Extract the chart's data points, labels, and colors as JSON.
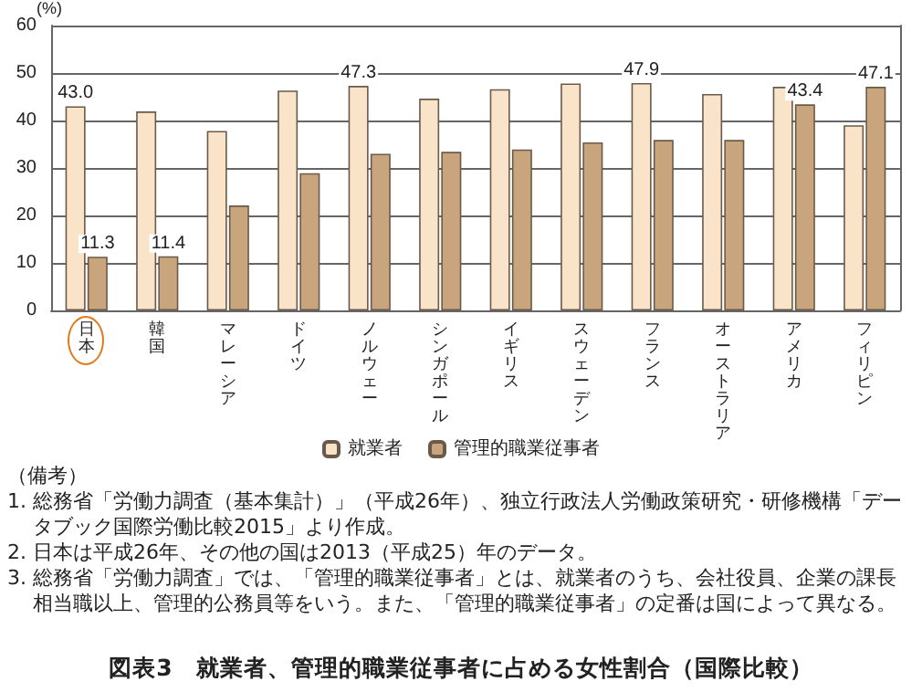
{
  "chart_data": {
    "type": "bar",
    "title": "図表3　就業者、管理的職業従事者に占める女性割合（国際比較）",
    "ylabel": "(%)",
    "categories": [
      "日本",
      "韓国",
      "マレーシア",
      "ドイツ",
      "ノルウェー",
      "シンガポール",
      "イギリス",
      "スウェーデン",
      "フランス",
      "オーストラリア",
      "アメリカ",
      "フィリピン"
    ],
    "series": [
      {
        "name": "就業者",
        "color": "#f9e4c9",
        "values": [
          43.0,
          41.9,
          37.8,
          46.3,
          47.3,
          44.6,
          46.6,
          47.8,
          47.9,
          45.6,
          47.1,
          39.0
        ],
        "value_labels": [
          "43.0",
          null,
          null,
          null,
          "47.3",
          null,
          null,
          null,
          "47.9",
          null,
          null,
          null
        ]
      },
      {
        "name": "管理的職業従事者",
        "color": "#c9a57d",
        "values": [
          11.3,
          11.4,
          22.1,
          28.9,
          33.0,
          33.4,
          33.9,
          35.4,
          35.9,
          35.9,
          43.4,
          47.1
        ],
        "value_labels": [
          "11.3",
          "11.4",
          null,
          null,
          null,
          null,
          null,
          null,
          null,
          null,
          "43.4",
          "47.1"
        ]
      }
    ],
    "ylim": [
      0,
      60
    ],
    "yticks": [
      0,
      10,
      20,
      30,
      40,
      50,
      60
    ],
    "grid": "y",
    "legend": "bottom",
    "annotations": [
      "（備考）",
      "1.  総務省「労働力調査（基本集計）」（平成26年）、独立行政法人労働政策研究・研修機構「データブック国際労働比較2015」より作成。",
      "2.  日本は平成26年、その他の国は2013（平成25）年のデータ。",
      "3.  総務省「労働力調査」では、「管理的職業従事者」とは、就業者のうち、会社役員、企業の課長相当職以上、管理的公務員等をいう。また、「管理的職業従事者」の定番は国によって異なる。"
    ]
  }
}
